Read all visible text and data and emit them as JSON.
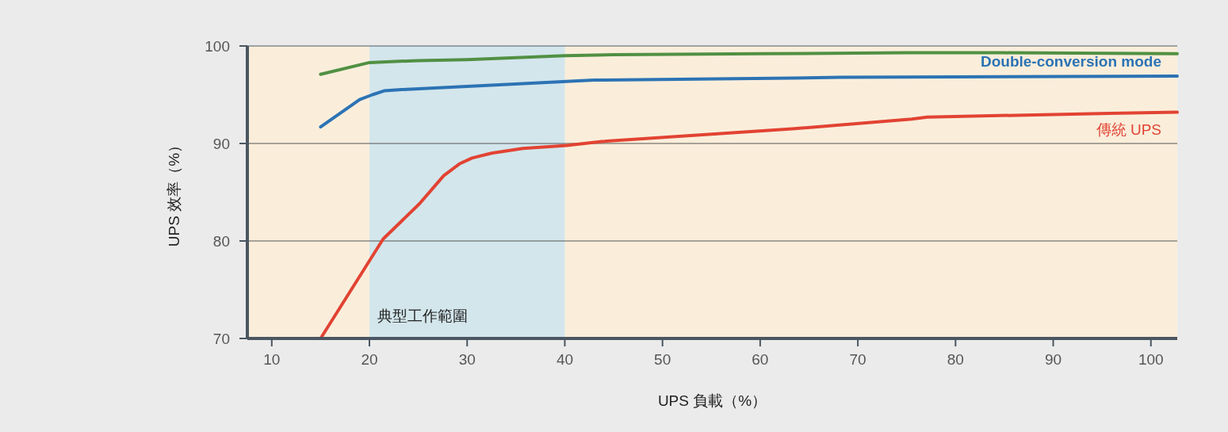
{
  "chart_data": {
    "type": "line",
    "xlabel": "UPS 負載（%）",
    "ylabel": "UPS 效率（%）",
    "xlim": [
      7.5,
      102.7
    ],
    "ylim": [
      70,
      100
    ],
    "xticks": [
      10,
      20,
      30,
      40,
      50,
      60,
      70,
      80,
      90,
      100
    ],
    "yticks": [
      70,
      80,
      90,
      100
    ],
    "grid": "y",
    "line_style": "solid",
    "bands": [
      {
        "axis": "x",
        "from": 20,
        "to": 40,
        "label": "典型工作範圍",
        "color": "#d3e6ec"
      }
    ],
    "series": [
      {
        "color": "#519043",
        "x": [
          15,
          20,
          25,
          30,
          35,
          40,
          45,
          60,
          75,
          85,
          102.7
        ],
        "values": [
          97.1,
          98.3,
          98.5,
          98.6,
          98.8,
          99.0,
          99.1,
          99.2,
          99.3,
          99.3,
          99.2
        ]
      },
      {
        "name": "Double-conversion mode",
        "color": "#2c73b4",
        "x": [
          15,
          19,
          20.3,
          21.5,
          22.7,
          30.8,
          34.9,
          43,
          63.3,
          68.2,
          102.7
        ],
        "values": [
          91.7,
          94.5,
          95.0,
          95.4,
          95.5,
          95.9,
          96.1,
          96.5,
          96.7,
          96.8,
          96.9
        ]
      },
      {
        "name": "傳統 UPS",
        "color": "#e24333",
        "x": [
          15,
          21.4,
          25.1,
          27.6,
          29.2,
          30.5,
          32.5,
          35.7,
          40.2,
          43.8,
          63.3,
          75.5,
          77.1,
          95.8,
          102.7
        ],
        "values": [
          70,
          80.2,
          83.8,
          86.7,
          87.9,
          88.5,
          89.0,
          89.5,
          89.8,
          90.2,
          91.5,
          92.5,
          92.7,
          93.1,
          93.2
        ]
      }
    ]
  }
}
